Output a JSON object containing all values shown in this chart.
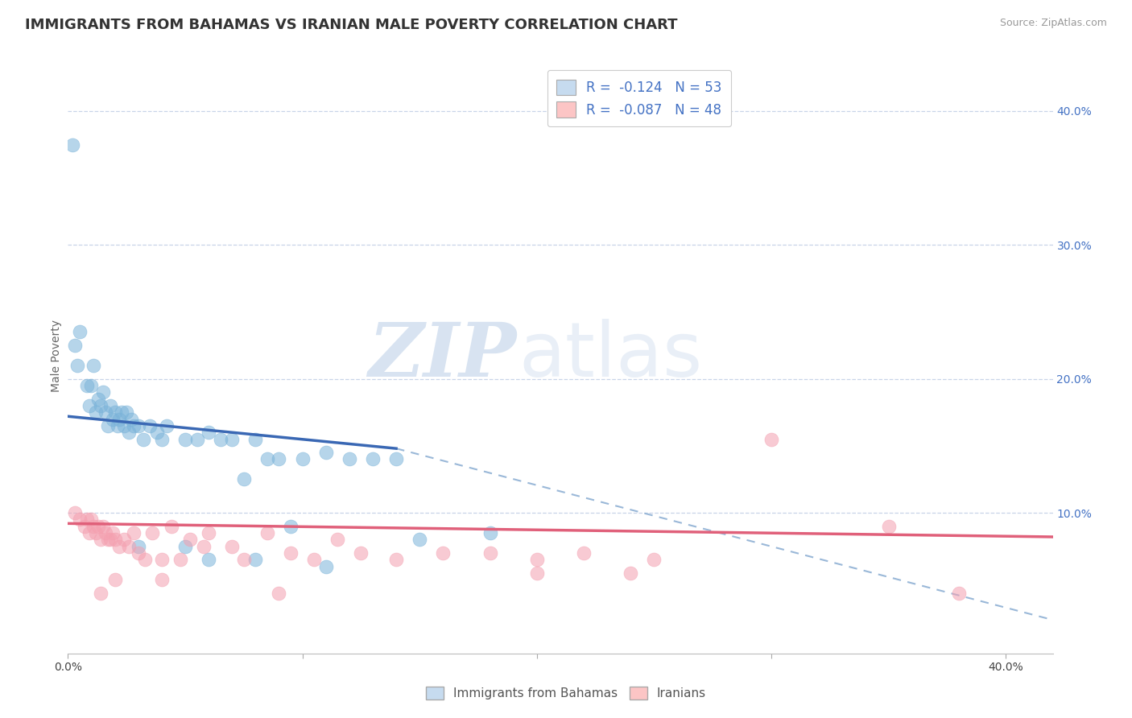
{
  "title": "IMMIGRANTS FROM BAHAMAS VS IRANIAN MALE POVERTY CORRELATION CHART",
  "source": "Source: ZipAtlas.com",
  "ylabel": "Male Poverty",
  "xlim": [
    0.0,
    0.42
  ],
  "ylim": [
    -0.005,
    0.44
  ],
  "blue_scatter": [
    [
      0.002,
      0.375
    ],
    [
      0.003,
      0.225
    ],
    [
      0.004,
      0.21
    ],
    [
      0.005,
      0.235
    ],
    [
      0.008,
      0.195
    ],
    [
      0.009,
      0.18
    ],
    [
      0.01,
      0.195
    ],
    [
      0.011,
      0.21
    ],
    [
      0.012,
      0.175
    ],
    [
      0.013,
      0.185
    ],
    [
      0.014,
      0.18
    ],
    [
      0.015,
      0.19
    ],
    [
      0.016,
      0.175
    ],
    [
      0.017,
      0.165
    ],
    [
      0.018,
      0.18
    ],
    [
      0.019,
      0.17
    ],
    [
      0.02,
      0.175
    ],
    [
      0.021,
      0.165
    ],
    [
      0.022,
      0.17
    ],
    [
      0.023,
      0.175
    ],
    [
      0.024,
      0.165
    ],
    [
      0.025,
      0.175
    ],
    [
      0.026,
      0.16
    ],
    [
      0.027,
      0.17
    ],
    [
      0.028,
      0.165
    ],
    [
      0.03,
      0.165
    ],
    [
      0.032,
      0.155
    ],
    [
      0.035,
      0.165
    ],
    [
      0.038,
      0.16
    ],
    [
      0.04,
      0.155
    ],
    [
      0.042,
      0.165
    ],
    [
      0.05,
      0.155
    ],
    [
      0.055,
      0.155
    ],
    [
      0.06,
      0.16
    ],
    [
      0.065,
      0.155
    ],
    [
      0.07,
      0.155
    ],
    [
      0.075,
      0.125
    ],
    [
      0.08,
      0.155
    ],
    [
      0.085,
      0.14
    ],
    [
      0.09,
      0.14
    ],
    [
      0.1,
      0.14
    ],
    [
      0.11,
      0.145
    ],
    [
      0.12,
      0.14
    ],
    [
      0.13,
      0.14
    ],
    [
      0.14,
      0.14
    ],
    [
      0.03,
      0.075
    ],
    [
      0.05,
      0.075
    ],
    [
      0.06,
      0.065
    ],
    [
      0.08,
      0.065
    ],
    [
      0.095,
      0.09
    ],
    [
      0.11,
      0.06
    ],
    [
      0.15,
      0.08
    ],
    [
      0.18,
      0.085
    ]
  ],
  "pink_scatter": [
    [
      0.003,
      0.1
    ],
    [
      0.005,
      0.095
    ],
    [
      0.007,
      0.09
    ],
    [
      0.008,
      0.095
    ],
    [
      0.009,
      0.085
    ],
    [
      0.01,
      0.095
    ],
    [
      0.011,
      0.09
    ],
    [
      0.012,
      0.085
    ],
    [
      0.013,
      0.09
    ],
    [
      0.014,
      0.08
    ],
    [
      0.015,
      0.09
    ],
    [
      0.016,
      0.085
    ],
    [
      0.017,
      0.08
    ],
    [
      0.018,
      0.08
    ],
    [
      0.019,
      0.085
    ],
    [
      0.02,
      0.08
    ],
    [
      0.022,
      0.075
    ],
    [
      0.024,
      0.08
    ],
    [
      0.026,
      0.075
    ],
    [
      0.028,
      0.085
    ],
    [
      0.03,
      0.07
    ],
    [
      0.033,
      0.065
    ],
    [
      0.036,
      0.085
    ],
    [
      0.04,
      0.065
    ],
    [
      0.044,
      0.09
    ],
    [
      0.048,
      0.065
    ],
    [
      0.052,
      0.08
    ],
    [
      0.058,
      0.075
    ],
    [
      0.06,
      0.085
    ],
    [
      0.07,
      0.075
    ],
    [
      0.075,
      0.065
    ],
    [
      0.085,
      0.085
    ],
    [
      0.095,
      0.07
    ],
    [
      0.105,
      0.065
    ],
    [
      0.115,
      0.08
    ],
    [
      0.125,
      0.07
    ],
    [
      0.14,
      0.065
    ],
    [
      0.16,
      0.07
    ],
    [
      0.18,
      0.07
    ],
    [
      0.2,
      0.065
    ],
    [
      0.22,
      0.07
    ],
    [
      0.25,
      0.065
    ],
    [
      0.3,
      0.155
    ],
    [
      0.35,
      0.09
    ],
    [
      0.014,
      0.04
    ],
    [
      0.02,
      0.05
    ],
    [
      0.04,
      0.05
    ],
    [
      0.09,
      0.04
    ],
    [
      0.2,
      0.055
    ],
    [
      0.24,
      0.055
    ],
    [
      0.38,
      0.04
    ]
  ],
  "blue_line_x": [
    0.0,
    0.14
  ],
  "blue_line_start_y": 0.172,
  "blue_line_end_y": 0.148,
  "dashed_line_x": [
    0.14,
    0.42
  ],
  "dashed_line_start_y": 0.148,
  "dashed_line_end_y": 0.02,
  "pink_line_x": [
    0.0,
    0.42
  ],
  "pink_line_start_y": 0.092,
  "pink_line_end_y": 0.082,
  "blue_color": "#7ab3d9",
  "pink_color": "#f4a0b0",
  "blue_line_color": "#3a68b4",
  "pink_line_color": "#e0607a",
  "dashed_line_color": "#9ab8d8",
  "blue_fill": "#c6dbef",
  "pink_fill": "#fcc5c5",
  "watermark_zip": "ZIP",
  "watermark_atlas": "atlas",
  "background_color": "#ffffff",
  "grid_color": "#c8d4e8",
  "title_fontsize": 13,
  "axis_label_fontsize": 10,
  "right_tick_color": "#4472c4"
}
